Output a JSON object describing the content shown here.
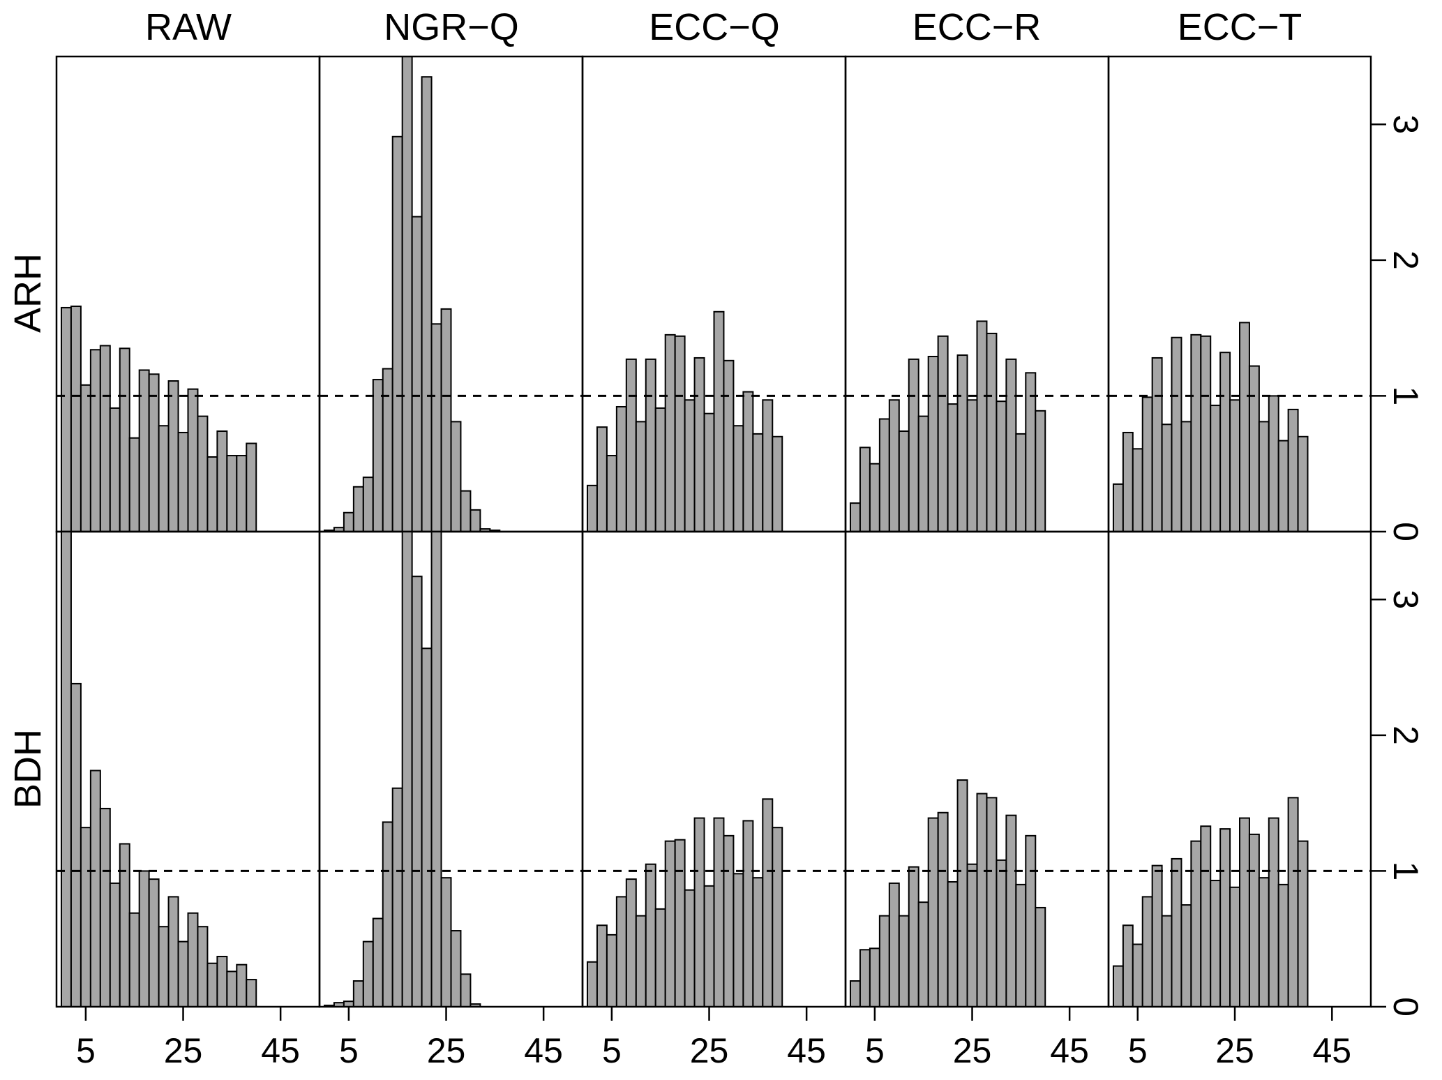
{
  "chart_data": {
    "type": "bar",
    "layout": "grid of histograms, 2 rows x 5 columns, shared axes",
    "column_titles": [
      "RAW",
      "NGR−Q",
      "ECC−Q",
      "ECC−R",
      "ECC−T"
    ],
    "row_labels": [
      "ARH",
      "BDH"
    ],
    "x_ticks": [
      "5",
      "25",
      "45"
    ],
    "x_tick_values": [
      5,
      25,
      45
    ],
    "x_bins": [
      1,
      3,
      5,
      7,
      9,
      11,
      13,
      15,
      17,
      19,
      21,
      23,
      25,
      27,
      29,
      31,
      33,
      35,
      37,
      39,
      41,
      43,
      45,
      47,
      49,
      51
    ],
    "xlim": [
      -1,
      53
    ],
    "y_ticks": [
      "0",
      "1",
      "2",
      "3"
    ],
    "ylim": [
      0,
      3.5
    ],
    "reference_line": 1,
    "bar_color": "#a6a6a6",
    "panels": [
      [
        {
          "title": "RAW",
          "row": "ARH",
          "values": [
            1.65,
            1.66,
            1.08,
            1.34,
            1.37,
            0.91,
            1.35,
            0.69,
            1.19,
            1.16,
            0.78,
            1.11,
            0.73,
            1.05,
            0.85,
            0.55,
            0.74,
            0.56,
            0.56,
            0.65
          ]
        },
        {
          "title": "NGR−Q",
          "row": "ARH",
          "values": [
            0.01,
            0.03,
            0.14,
            0.33,
            0.4,
            1.12,
            1.2,
            2.91,
            3.5,
            2.32,
            3.35,
            1.53,
            1.64,
            0.81,
            0.3,
            0.16,
            0.02,
            0.01
          ]
        },
        {
          "title": "ECC−Q",
          "row": "ARH",
          "values": [
            0.34,
            0.77,
            0.56,
            0.92,
            1.27,
            0.81,
            1.27,
            0.91,
            1.45,
            1.44,
            0.97,
            1.28,
            0.87,
            1.62,
            1.26,
            0.78,
            1.03,
            0.72,
            0.97,
            0.7
          ]
        },
        {
          "title": "ECC−R",
          "row": "ARH",
          "values": [
            0.21,
            0.62,
            0.5,
            0.83,
            0.97,
            0.74,
            1.27,
            0.85,
            1.29,
            1.44,
            0.94,
            1.3,
            0.97,
            1.55,
            1.46,
            0.96,
            1.27,
            0.72,
            1.17,
            0.89
          ]
        },
        {
          "title": "ECC−T",
          "row": "ARH",
          "values": [
            0.35,
            0.73,
            0.61,
            0.99,
            1.28,
            0.79,
            1.43,
            0.81,
            1.45,
            1.44,
            0.93,
            1.32,
            0.97,
            1.54,
            1.22,
            0.81,
            1.0,
            0.67,
            0.9,
            0.7
          ]
        }
      ],
      [
        {
          "title": "RAW",
          "row": "BDH",
          "values": [
            3.5,
            2.38,
            1.32,
            1.74,
            1.46,
            0.91,
            1.2,
            0.69,
            1.0,
            0.94,
            0.59,
            0.81,
            0.48,
            0.69,
            0.59,
            0.32,
            0.37,
            0.26,
            0.31,
            0.2
          ]
        },
        {
          "title": "NGR−Q",
          "row": "BDH",
          "values": [
            0.01,
            0.03,
            0.04,
            0.19,
            0.48,
            0.65,
            1.36,
            1.61,
            3.5,
            3.17,
            2.64,
            3.5,
            0.95,
            0.56,
            0.24,
            0.02
          ]
        },
        {
          "title": "ECC−Q",
          "row": "BDH",
          "values": [
            0.33,
            0.6,
            0.53,
            0.81,
            0.94,
            0.67,
            1.05,
            0.72,
            1.22,
            1.23,
            0.86,
            1.39,
            0.89,
            1.39,
            1.26,
            0.98,
            1.37,
            0.95,
            1.53,
            1.32
          ]
        },
        {
          "title": "ECC−R",
          "row": "BDH",
          "values": [
            0.19,
            0.42,
            0.43,
            0.67,
            0.91,
            0.67,
            1.03,
            0.77,
            1.39,
            1.43,
            0.92,
            1.67,
            1.05,
            1.57,
            1.54,
            1.08,
            1.41,
            0.9,
            1.26,
            0.73
          ]
        },
        {
          "title": "ECC−T",
          "row": "BDH",
          "values": [
            0.3,
            0.6,
            0.46,
            0.81,
            1.04,
            0.67,
            1.09,
            0.75,
            1.22,
            1.33,
            0.93,
            1.31,
            0.88,
            1.39,
            1.27,
            0.95,
            1.39,
            0.9,
            1.54,
            1.22
          ]
        }
      ]
    ]
  }
}
